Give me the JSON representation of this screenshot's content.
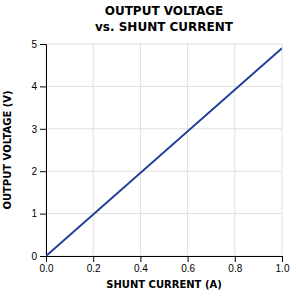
{
  "chart_data": {
    "type": "line",
    "title": "OUTPUT VOLTAGE",
    "subtitle": "vs. SHUNT CURRENT",
    "x_label": "SHUNT CURRENT (A)",
    "y_label": "OUTPUT VOLTAGE (V)",
    "x": [
      0.0,
      1.0
    ],
    "values": [
      0.0,
      4.9
    ],
    "color": "#1f3d99",
    "xlim": [
      0.0,
      1.0
    ],
    "ylim": [
      0.0,
      5.0
    ],
    "xticks": [
      {
        "value": 0.0,
        "label": "0.0"
      },
      0.2,
      0.4,
      0.6,
      0.8,
      {
        "value": 1.0,
        "label": "1.0"
      }
    ],
    "yticks": [
      0,
      1,
      2,
      3,
      4,
      5
    ],
    "grid": true
  }
}
